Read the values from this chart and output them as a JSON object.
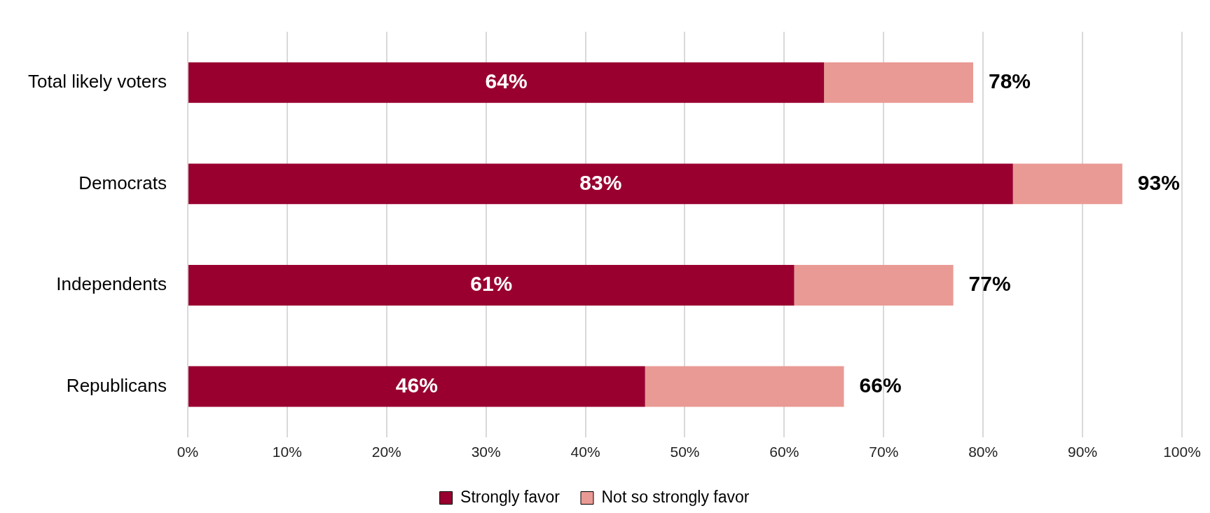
{
  "chart_data": {
    "type": "bar",
    "orientation": "horizontal",
    "stacked": true,
    "categories": [
      "Total likely voters",
      "Democrats",
      "Independents",
      "Republicans"
    ],
    "series": [
      {
        "name": "Strongly favor",
        "color": "#990030",
        "values": [
          64,
          83,
          61,
          46
        ],
        "value_labels": [
          "64%",
          "83%",
          "61%",
          "46%"
        ]
      },
      {
        "name": "Not so strongly favor",
        "color": "#ea9a94",
        "values": [
          15,
          11,
          16,
          20
        ]
      }
    ],
    "totals": [
      "78%",
      "93%",
      "77%",
      "66%"
    ],
    "xlim": [
      0,
      100
    ],
    "xticks": [
      {
        "value": 0,
        "label": "0%"
      },
      {
        "value": 10,
        "label": "10%"
      },
      {
        "value": 20,
        "label": "20%"
      },
      {
        "value": 30,
        "label": "30%"
      },
      {
        "value": 40,
        "label": "40%"
      },
      {
        "value": 50,
        "label": "50%"
      },
      {
        "value": 60,
        "label": "60%"
      },
      {
        "value": 70,
        "label": "70%"
      },
      {
        "value": 80,
        "label": "80%"
      },
      {
        "value": 90,
        "label": "90%"
      },
      {
        "value": 100,
        "label": "100%"
      }
    ],
    "grid": "x",
    "legend": "bottom"
  }
}
